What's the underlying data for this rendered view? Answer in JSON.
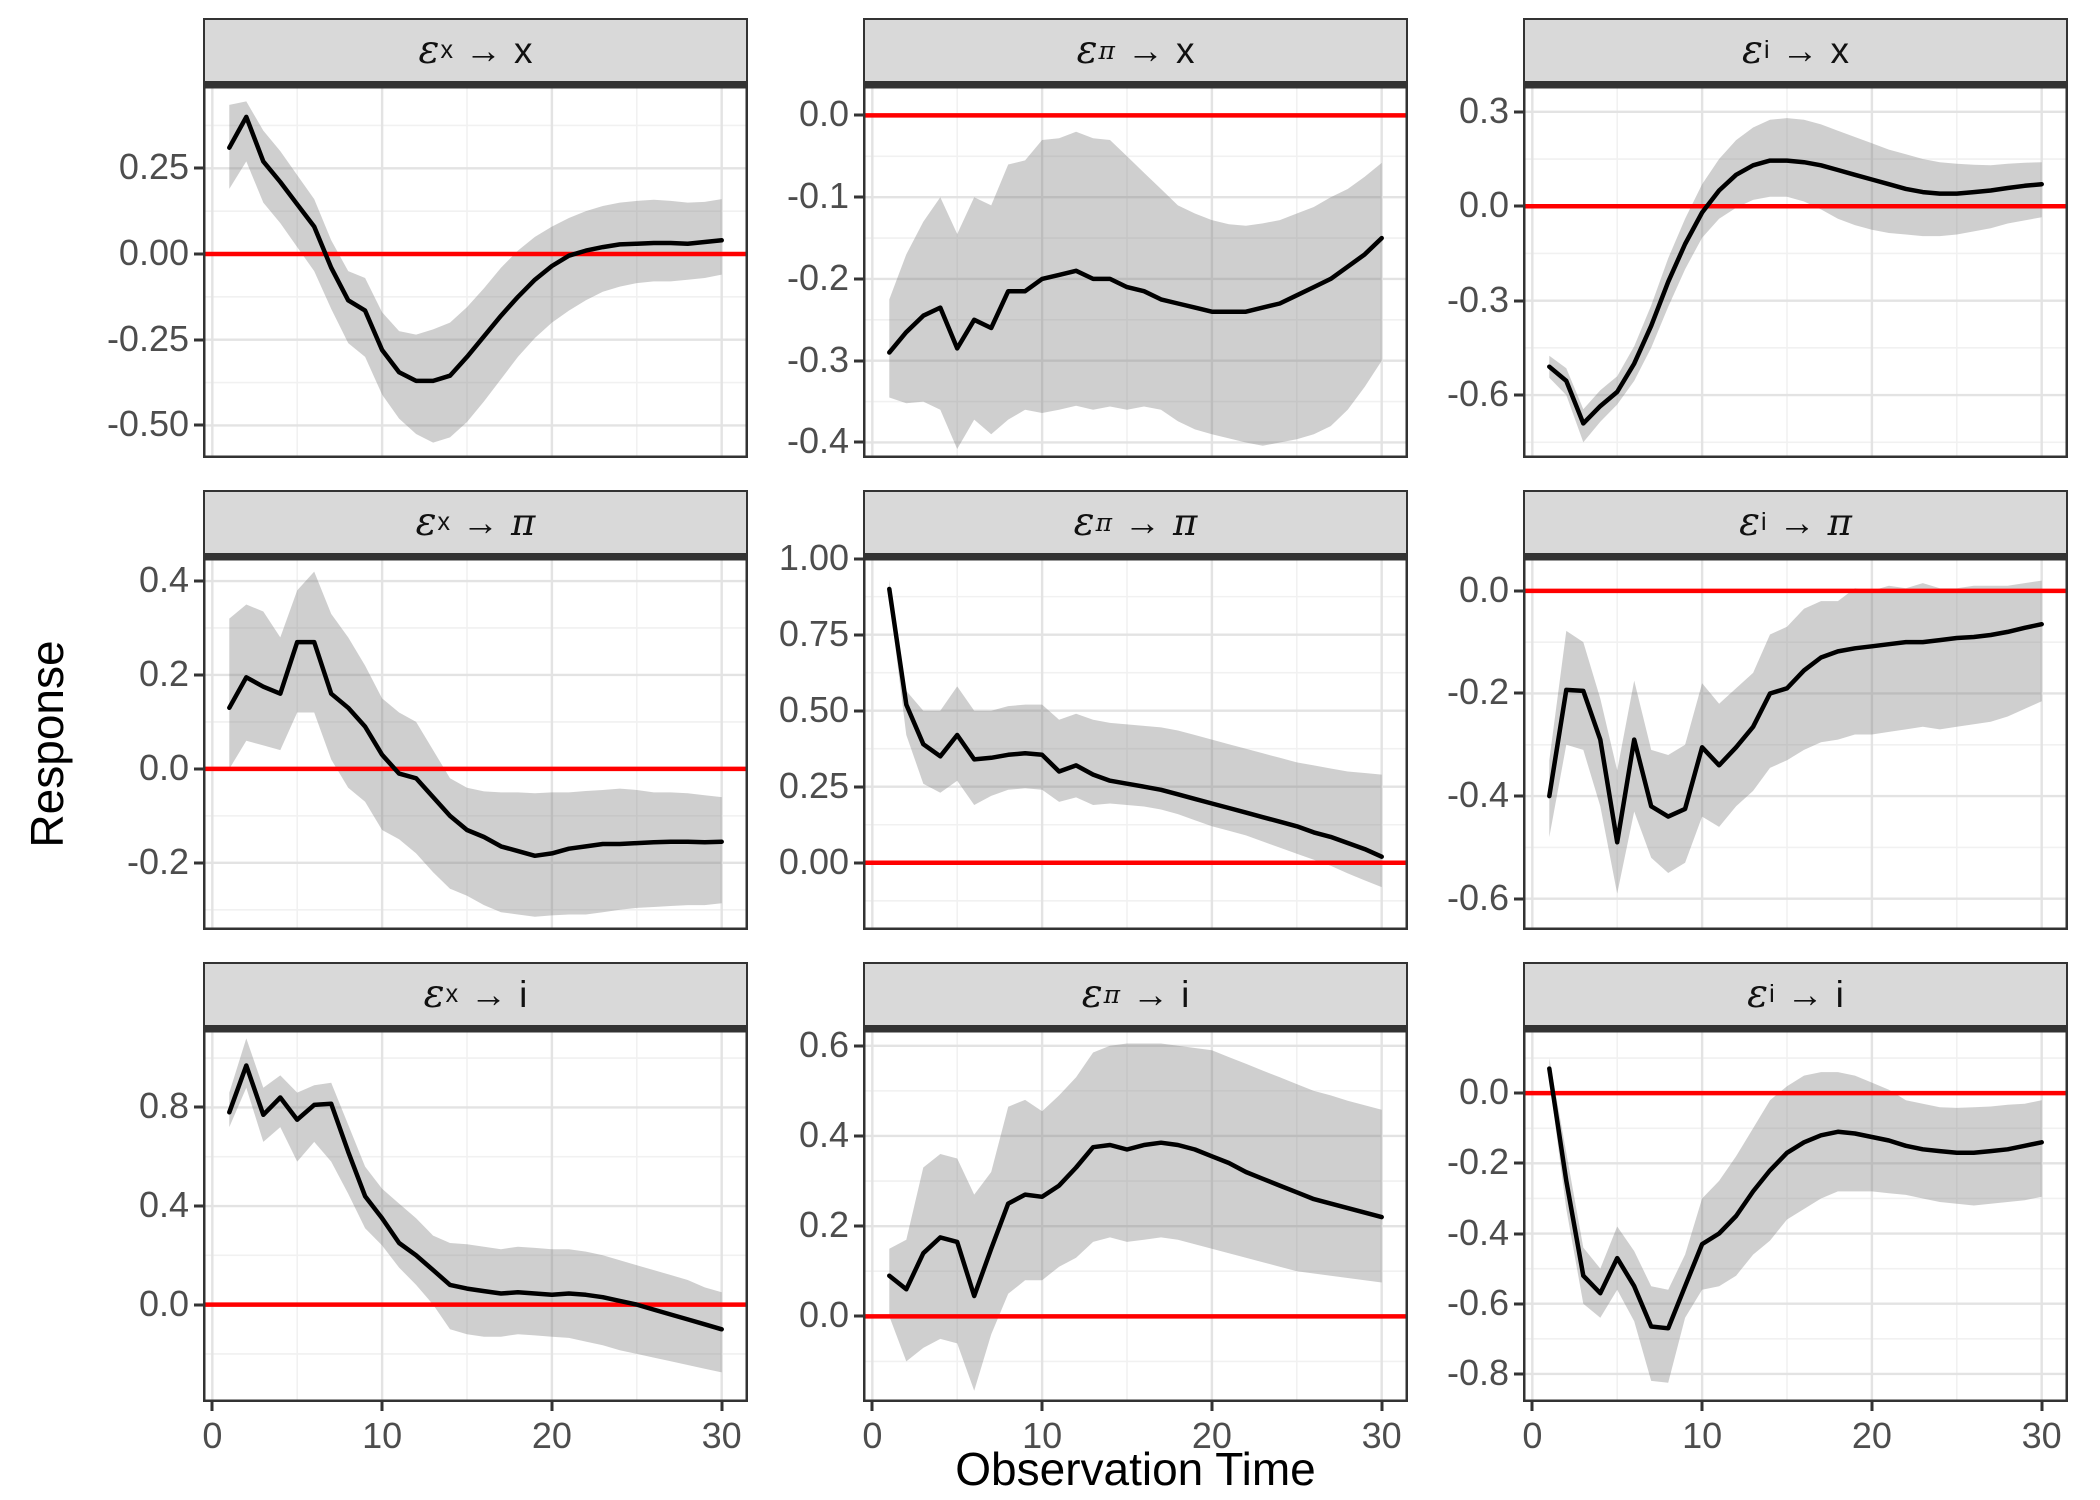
{
  "chart_data": {
    "type": "line",
    "description": "3x3 facet grid of impulse response functions with confidence bands",
    "x_axis_title": "Observation Time",
    "y_axis_title": "Response",
    "x_range": [
      1,
      30
    ],
    "xlim": [
      -0.55,
      31.55
    ],
    "x_ticks": {
      "values": [
        0,
        10,
        20,
        30
      ],
      "labels": [
        "0",
        "10",
        "20",
        "30"
      ]
    },
    "x_minor_ticks": [
      5,
      15,
      25
    ],
    "legend": "none",
    "grid": "on",
    "colors": {
      "zero_line": "#FF0000",
      "irf_line": "#000000",
      "band": "rgba(130,130,130,0.38)",
      "strip_fill": "#D9D9D9",
      "panel_border": "#333333",
      "grid_major": "#E3E3E3",
      "grid_minor": "#F1F1F1",
      "tick_text": "#4D4D4D",
      "tick_mark": "#333333"
    },
    "facets": [
      {
        "id": "eps_x-to-x",
        "shock_sub": "x",
        "arrow": "→",
        "response": "x",
        "ylim": [
          -0.595,
          0.49
        ],
        "yticks": {
          "values": [
            0.25,
            0.0,
            -0.25,
            -0.5
          ],
          "labels": [
            "0.25",
            "0.00",
            "-0.25",
            "-0.50"
          ]
        },
        "mean": [
          0.31,
          0.4,
          0.27,
          0.21,
          0.145,
          0.08,
          -0.04,
          -0.135,
          -0.165,
          -0.28,
          -0.345,
          -0.37,
          -0.37,
          -0.355,
          -0.3,
          -0.24,
          -0.18,
          -0.125,
          -0.075,
          -0.035,
          -0.005,
          0.01,
          0.02,
          0.028,
          0.03,
          0.032,
          0.032,
          0.03,
          0.035,
          0.04
        ],
        "lower": [
          0.19,
          0.27,
          0.15,
          0.09,
          0.02,
          -0.05,
          -0.16,
          -0.26,
          -0.3,
          -0.41,
          -0.48,
          -0.525,
          -0.55,
          -0.535,
          -0.49,
          -0.43,
          -0.365,
          -0.3,
          -0.245,
          -0.2,
          -0.165,
          -0.135,
          -0.11,
          -0.095,
          -0.085,
          -0.08,
          -0.08,
          -0.075,
          -0.07,
          -0.06
        ],
        "upper": [
          0.435,
          0.445,
          0.36,
          0.3,
          0.23,
          0.16,
          0.04,
          -0.05,
          -0.07,
          -0.17,
          -0.225,
          -0.235,
          -0.22,
          -0.2,
          -0.155,
          -0.1,
          -0.04,
          0.01,
          0.05,
          0.08,
          0.105,
          0.125,
          0.14,
          0.15,
          0.155,
          0.158,
          0.155,
          0.15,
          0.152,
          0.16
        ]
      },
      {
        "id": "eps_pi-to-x",
        "shock_sub": "π",
        "arrow": "→",
        "response": "x",
        "ylim": [
          -0.419,
          0.036
        ],
        "yticks": {
          "values": [
            0.0,
            -0.1,
            -0.2,
            -0.3,
            -0.4
          ],
          "labels": [
            "0.0",
            "-0.1",
            "-0.2",
            "-0.3",
            "-0.4"
          ]
        },
        "mean": [
          -0.29,
          -0.265,
          -0.245,
          -0.235,
          -0.285,
          -0.25,
          -0.26,
          -0.215,
          -0.215,
          -0.2,
          -0.195,
          -0.19,
          -0.2,
          -0.2,
          -0.21,
          -0.215,
          -0.225,
          -0.23,
          -0.235,
          -0.24,
          -0.24,
          -0.24,
          -0.235,
          -0.23,
          -0.22,
          -0.21,
          -0.2,
          -0.185,
          -0.17,
          -0.15
        ],
        "lower": [
          -0.345,
          -0.352,
          -0.35,
          -0.36,
          -0.408,
          -0.372,
          -0.39,
          -0.372,
          -0.36,
          -0.364,
          -0.36,
          -0.355,
          -0.36,
          -0.356,
          -0.36,
          -0.356,
          -0.36,
          -0.374,
          -0.384,
          -0.39,
          -0.395,
          -0.4,
          -0.404,
          -0.4,
          -0.396,
          -0.39,
          -0.38,
          -0.36,
          -0.332,
          -0.3
        ],
        "upper": [
          -0.225,
          -0.17,
          -0.13,
          -0.1,
          -0.145,
          -0.1,
          -0.11,
          -0.06,
          -0.055,
          -0.03,
          -0.028,
          -0.02,
          -0.028,
          -0.03,
          -0.05,
          -0.07,
          -0.09,
          -0.11,
          -0.12,
          -0.128,
          -0.133,
          -0.135,
          -0.132,
          -0.128,
          -0.12,
          -0.112,
          -0.1,
          -0.09,
          -0.075,
          -0.058
        ]
      },
      {
        "id": "eps_i-to-x",
        "shock_sub": "i",
        "arrow": "→",
        "response": "x",
        "ylim": [
          -0.8,
          0.382
        ],
        "yticks": {
          "values": [
            0.3,
            0.0,
            -0.3,
            -0.6
          ],
          "labels": [
            "0.3",
            "0.0",
            "-0.3",
            "-0.6"
          ]
        },
        "mean": [
          -0.51,
          -0.555,
          -0.69,
          -0.635,
          -0.59,
          -0.5,
          -0.38,
          -0.24,
          -0.12,
          -0.02,
          0.05,
          0.1,
          0.13,
          0.145,
          0.145,
          0.14,
          0.13,
          0.115,
          0.1,
          0.085,
          0.07,
          0.055,
          0.045,
          0.04,
          0.04,
          0.045,
          0.05,
          0.058,
          0.065,
          0.07
        ],
        "lower": [
          -0.545,
          -0.6,
          -0.75,
          -0.685,
          -0.63,
          -0.555,
          -0.45,
          -0.32,
          -0.2,
          -0.1,
          -0.04,
          -0.005,
          0.02,
          0.03,
          0.03,
          0.015,
          -0.01,
          -0.04,
          -0.06,
          -0.075,
          -0.085,
          -0.09,
          -0.095,
          -0.095,
          -0.09,
          -0.08,
          -0.07,
          -0.055,
          -0.045,
          -0.035
        ],
        "upper": [
          -0.475,
          -0.515,
          -0.645,
          -0.585,
          -0.54,
          -0.445,
          -0.315,
          -0.165,
          -0.04,
          0.07,
          0.15,
          0.21,
          0.25,
          0.275,
          0.28,
          0.275,
          0.26,
          0.24,
          0.22,
          0.2,
          0.18,
          0.165,
          0.15,
          0.14,
          0.135,
          0.132,
          0.13,
          0.135,
          0.138,
          0.14
        ]
      },
      {
        "id": "eps_x-to-pi",
        "shock_sub": "x",
        "arrow": "→",
        "response": "π",
        "ylim": [
          -0.343,
          0.449
        ],
        "yticks": {
          "values": [
            0.4,
            0.2,
            0.0,
            -0.2
          ],
          "labels": [
            "0.4",
            "0.2",
            "0.0",
            "-0.2"
          ]
        },
        "mean": [
          0.13,
          0.195,
          0.175,
          0.16,
          0.27,
          0.27,
          0.16,
          0.13,
          0.09,
          0.03,
          -0.01,
          -0.02,
          -0.06,
          -0.1,
          -0.13,
          -0.145,
          -0.165,
          -0.175,
          -0.185,
          -0.18,
          -0.17,
          -0.165,
          -0.16,
          -0.16,
          -0.158,
          -0.156,
          -0.155,
          -0.155,
          -0.156,
          -0.155
        ],
        "lower": [
          0.0,
          0.06,
          0.05,
          0.04,
          0.12,
          0.12,
          0.02,
          -0.04,
          -0.07,
          -0.13,
          -0.15,
          -0.18,
          -0.22,
          -0.255,
          -0.27,
          -0.29,
          -0.305,
          -0.31,
          -0.315,
          -0.312,
          -0.31,
          -0.31,
          -0.305,
          -0.3,
          -0.296,
          -0.294,
          -0.292,
          -0.29,
          -0.29,
          -0.286
        ],
        "upper": [
          0.32,
          0.35,
          0.335,
          0.28,
          0.38,
          0.42,
          0.33,
          0.28,
          0.22,
          0.15,
          0.12,
          0.1,
          0.04,
          -0.02,
          -0.04,
          -0.048,
          -0.05,
          -0.05,
          -0.052,
          -0.05,
          -0.05,
          -0.047,
          -0.045,
          -0.042,
          -0.045,
          -0.05,
          -0.05,
          -0.052,
          -0.056,
          -0.06
        ]
      },
      {
        "id": "eps_pi-to-pi",
        "shock_sub": "π",
        "arrow": "→",
        "response": "π",
        "ylim": [
          -0.221,
          1.002
        ],
        "yticks": {
          "values": [
            1.0,
            0.75,
            0.5,
            0.25,
            0.0
          ],
          "labels": [
            "1.00",
            "0.75",
            "0.50",
            "0.25",
            "0.00"
          ]
        },
        "mean": [
          0.9,
          0.52,
          0.39,
          0.35,
          0.42,
          0.34,
          0.345,
          0.355,
          0.36,
          0.355,
          0.3,
          0.32,
          0.29,
          0.27,
          0.26,
          0.25,
          0.24,
          0.225,
          0.21,
          0.195,
          0.18,
          0.165,
          0.15,
          0.135,
          0.12,
          0.1,
          0.085,
          0.065,
          0.045,
          0.02
        ],
        "lower": [
          0.87,
          0.42,
          0.26,
          0.23,
          0.27,
          0.19,
          0.22,
          0.24,
          0.245,
          0.24,
          0.2,
          0.215,
          0.19,
          0.195,
          0.19,
          0.185,
          0.175,
          0.16,
          0.14,
          0.12,
          0.105,
          0.09,
          0.07,
          0.05,
          0.03,
          0.01,
          -0.01,
          -0.035,
          -0.058,
          -0.08
        ],
        "upper": [
          0.93,
          0.565,
          0.5,
          0.5,
          0.58,
          0.5,
          0.5,
          0.515,
          0.52,
          0.52,
          0.47,
          0.49,
          0.47,
          0.46,
          0.455,
          0.45,
          0.445,
          0.435,
          0.42,
          0.405,
          0.39,
          0.375,
          0.36,
          0.345,
          0.33,
          0.32,
          0.31,
          0.3,
          0.295,
          0.29
        ]
      },
      {
        "id": "eps_i-to-pi",
        "shock_sub": "i",
        "arrow": "→",
        "response": "π",
        "ylim": [
          -0.661,
          0.064
        ],
        "yticks": {
          "values": [
            0.0,
            -0.2,
            -0.4,
            -0.6
          ],
          "labels": [
            "0.0",
            "-0.2",
            "-0.4",
            "-0.6"
          ]
        },
        "mean": [
          -0.4,
          -0.193,
          -0.195,
          -0.29,
          -0.49,
          -0.29,
          -0.42,
          -0.44,
          -0.425,
          -0.305,
          -0.34,
          -0.305,
          -0.265,
          -0.2,
          -0.19,
          -0.155,
          -0.13,
          -0.118,
          -0.112,
          -0.108,
          -0.104,
          -0.1,
          -0.1,
          -0.096,
          -0.092,
          -0.09,
          -0.086,
          -0.08,
          -0.072,
          -0.065
        ],
        "lower": [
          -0.48,
          -0.3,
          -0.31,
          -0.42,
          -0.59,
          -0.43,
          -0.52,
          -0.55,
          -0.53,
          -0.44,
          -0.46,
          -0.42,
          -0.39,
          -0.345,
          -0.33,
          -0.31,
          -0.295,
          -0.29,
          -0.28,
          -0.28,
          -0.275,
          -0.27,
          -0.265,
          -0.27,
          -0.265,
          -0.26,
          -0.255,
          -0.245,
          -0.23,
          -0.215
        ],
        "upper": [
          -0.33,
          -0.078,
          -0.1,
          -0.21,
          -0.35,
          -0.175,
          -0.31,
          -0.32,
          -0.3,
          -0.18,
          -0.22,
          -0.19,
          -0.16,
          -0.085,
          -0.07,
          -0.035,
          -0.02,
          -0.02,
          0.005,
          0.0,
          0.01,
          0.005,
          0.015,
          0.005,
          0.005,
          0.01,
          0.01,
          0.01,
          0.015,
          0.02
        ]
      },
      {
        "id": "eps_x-to-i",
        "shock_sub": "x",
        "arrow": "→",
        "response": "i",
        "ylim": [
          -0.395,
          1.114
        ],
        "yticks": {
          "values": [
            0.8,
            0.4,
            0.0
          ],
          "labels": [
            "0.8",
            "0.4",
            "0.0"
          ]
        },
        "mean": [
          0.78,
          0.97,
          0.77,
          0.84,
          0.75,
          0.81,
          0.815,
          0.62,
          0.44,
          0.35,
          0.25,
          0.2,
          0.14,
          0.08,
          0.065,
          0.055,
          0.045,
          0.05,
          0.045,
          0.04,
          0.045,
          0.04,
          0.03,
          0.015,
          0.0,
          -0.02,
          -0.04,
          -0.06,
          -0.08,
          -0.1
        ],
        "lower": [
          0.72,
          0.88,
          0.66,
          0.72,
          0.58,
          0.66,
          0.58,
          0.45,
          0.31,
          0.24,
          0.15,
          0.08,
          0.0,
          -0.1,
          -0.12,
          -0.13,
          -0.13,
          -0.12,
          -0.125,
          -0.13,
          -0.135,
          -0.15,
          -0.165,
          -0.185,
          -0.2,
          -0.215,
          -0.23,
          -0.245,
          -0.26,
          -0.275
        ],
        "upper": [
          0.86,
          1.08,
          0.88,
          0.93,
          0.86,
          0.89,
          0.9,
          0.73,
          0.56,
          0.47,
          0.41,
          0.35,
          0.28,
          0.25,
          0.245,
          0.235,
          0.225,
          0.235,
          0.23,
          0.225,
          0.225,
          0.215,
          0.2,
          0.18,
          0.16,
          0.14,
          0.12,
          0.1,
          0.07,
          0.05
        ]
      },
      {
        "id": "eps_pi-to-i",
        "shock_sub": "π",
        "arrow": "→",
        "response": "i",
        "ylim": [
          -0.19,
          0.635
        ],
        "yticks": {
          "values": [
            0.6,
            0.4,
            0.2,
            0.0
          ],
          "labels": [
            "0.6",
            "0.4",
            "0.2",
            "0.0"
          ]
        },
        "mean": [
          0.09,
          0.06,
          0.14,
          0.175,
          0.165,
          0.045,
          0.15,
          0.25,
          0.27,
          0.265,
          0.29,
          0.33,
          0.375,
          0.38,
          0.37,
          0.38,
          0.385,
          0.38,
          0.37,
          0.355,
          0.34,
          0.32,
          0.305,
          0.29,
          0.275,
          0.26,
          0.25,
          0.24,
          0.23,
          0.22
        ],
        "lower": [
          0.0,
          -0.1,
          -0.07,
          -0.05,
          -0.06,
          -0.165,
          -0.04,
          0.05,
          0.08,
          0.08,
          0.11,
          0.13,
          0.165,
          0.175,
          0.165,
          0.17,
          0.175,
          0.17,
          0.16,
          0.15,
          0.14,
          0.13,
          0.12,
          0.11,
          0.1,
          0.095,
          0.09,
          0.085,
          0.08,
          0.075
        ],
        "upper": [
          0.15,
          0.17,
          0.33,
          0.36,
          0.35,
          0.27,
          0.32,
          0.465,
          0.48,
          0.455,
          0.49,
          0.53,
          0.585,
          0.6,
          0.605,
          0.605,
          0.605,
          0.6,
          0.595,
          0.59,
          0.575,
          0.56,
          0.545,
          0.53,
          0.515,
          0.5,
          0.49,
          0.478,
          0.468,
          0.458
        ]
      },
      {
        "id": "eps_i-to-i",
        "shock_sub": "i",
        "arrow": "→",
        "response": "i",
        "ylim": [
          -0.88,
          0.18
        ],
        "yticks": {
          "values": [
            0.0,
            -0.2,
            -0.4,
            -0.6,
            -0.8
          ],
          "labels": [
            "0.0",
            "-0.2",
            "-0.4",
            "-0.6",
            "-0.8"
          ]
        },
        "mean": [
          0.07,
          -0.25,
          -0.52,
          -0.57,
          -0.47,
          -0.55,
          -0.665,
          -0.67,
          -0.55,
          -0.43,
          -0.4,
          -0.35,
          -0.28,
          -0.22,
          -0.17,
          -0.14,
          -0.12,
          -0.11,
          -0.115,
          -0.125,
          -0.135,
          -0.15,
          -0.16,
          -0.165,
          -0.17,
          -0.17,
          -0.165,
          -0.16,
          -0.15,
          -0.14
        ],
        "lower": [
          0.04,
          -0.33,
          -0.6,
          -0.64,
          -0.56,
          -0.65,
          -0.82,
          -0.825,
          -0.64,
          -0.56,
          -0.55,
          -0.52,
          -0.46,
          -0.42,
          -0.36,
          -0.33,
          -0.3,
          -0.28,
          -0.28,
          -0.28,
          -0.285,
          -0.29,
          -0.3,
          -0.31,
          -0.315,
          -0.32,
          -0.315,
          -0.31,
          -0.305,
          -0.295
        ],
        "upper": [
          0.1,
          -0.17,
          -0.44,
          -0.5,
          -0.38,
          -0.45,
          -0.55,
          -0.56,
          -0.46,
          -0.3,
          -0.25,
          -0.18,
          -0.1,
          -0.02,
          0.02,
          0.05,
          0.06,
          0.06,
          0.05,
          0.03,
          0.01,
          -0.02,
          -0.03,
          -0.04,
          -0.042,
          -0.04,
          -0.038,
          -0.033,
          -0.03,
          -0.02
        ]
      }
    ]
  }
}
